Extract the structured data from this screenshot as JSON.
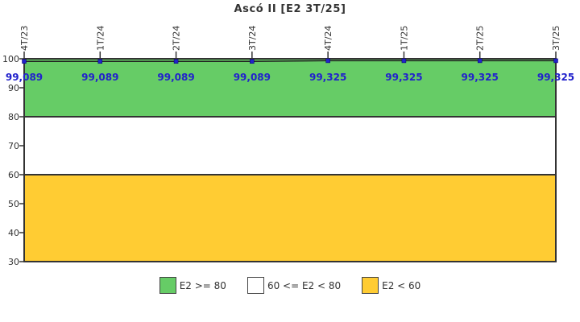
{
  "title": "Ascó II [E2 3T/25]",
  "chart_data": {
    "type": "line",
    "title": "Ascó II [E2 3T/25]",
    "categories": [
      "4T/23",
      "1T/24",
      "2T/24",
      "3T/24",
      "4T/24",
      "1T/25",
      "2T/25",
      "3T/25"
    ],
    "values": [
      99.089,
      99.089,
      99.089,
      99.089,
      99.325,
      99.325,
      99.325,
      99.325
    ],
    "value_labels": [
      "99,089",
      "99,089",
      "99,089",
      "99,089",
      "99,325",
      "99,325",
      "99,325",
      "99,325"
    ],
    "yticks": [
      100,
      90,
      80,
      70,
      60,
      50,
      40,
      30
    ],
    "ylim": [
      30,
      100
    ],
    "grid": false,
    "x_axis_position": "top",
    "legend_position": "bottom",
    "bands": [
      {
        "label": "E2 >= 80",
        "from": 80,
        "to": 100,
        "color": "#66CC66"
      },
      {
        "label": "60 <= E2 < 80",
        "from": 60,
        "to": 80,
        "color": "#FFFFFF"
      },
      {
        "label": "E2 < 60",
        "from": 30,
        "to": 60,
        "color": "#FFCC33"
      }
    ],
    "legend": [
      {
        "label": "E2 >= 80",
        "color": "#66CC66"
      },
      {
        "label": "60 <= E2 < 80",
        "color": "#FFFFFF"
      },
      {
        "label": "E2 < 60",
        "color": "#FFCC33"
      }
    ],
    "colors": {
      "line": "#222222",
      "marker": "#2222CC",
      "value_label": "#2222CC",
      "axis": "#333333",
      "tick_label": "#333333",
      "background": "#FFFFFF"
    }
  }
}
